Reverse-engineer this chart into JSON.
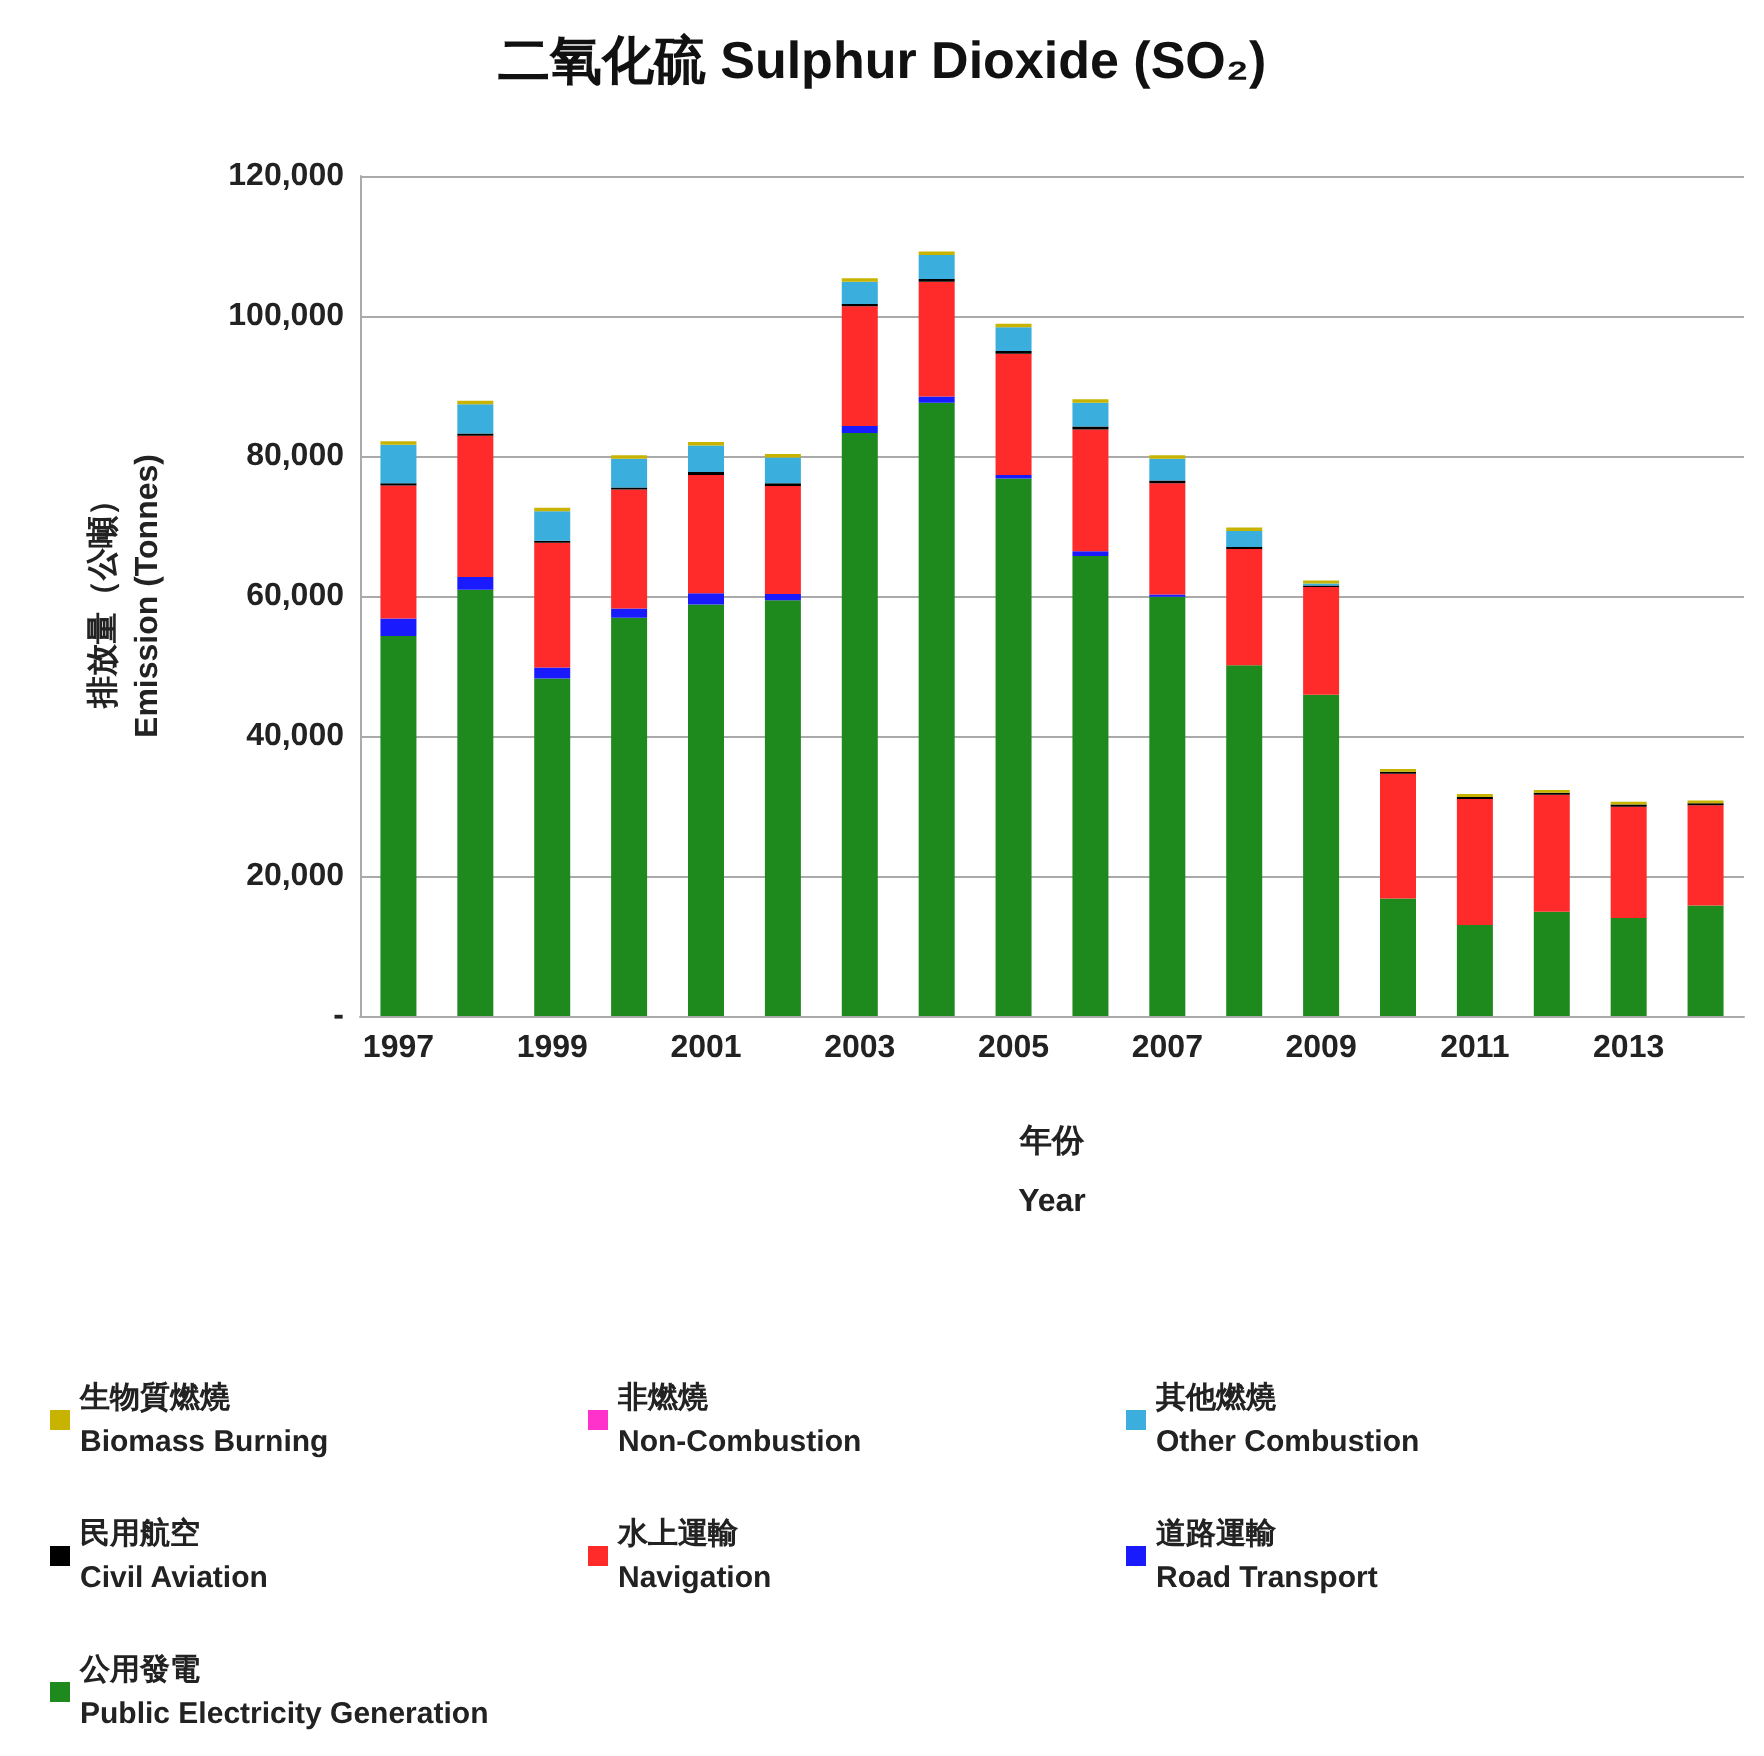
{
  "chart_data": {
    "type": "bar",
    "stacked": true,
    "title": "二氧化硫 Sulphur Dioxide (SO₂)",
    "xlabel": "年份\nYear",
    "ylabel": "排放量（公噸）\nEmission (Tonnes)",
    "categories": [
      "1997",
      null,
      "1999",
      null,
      "2001",
      null,
      "2003",
      null,
      "2005",
      null,
      "2007",
      null,
      "2009",
      null,
      "2011",
      null,
      "2013",
      null
    ],
    "series": [
      {
        "name": "公用發電\nPublic Electricity Generation",
        "color": "#1e8a1e",
        "values": [
          54300,
          60900,
          48200,
          56900,
          58800,
          59400,
          83300,
          87600,
          76800,
          65700,
          59900,
          50100,
          45900,
          16800,
          13000,
          14900,
          14000,
          15800
        ]
      },
      {
        "name": "道路運輸\nRoad Transport",
        "color": "#1a1aff",
        "values": [
          2500,
          1800,
          1600,
          1300,
          1600,
          900,
          1000,
          900,
          500,
          700,
          300,
          0,
          0,
          0,
          0,
          0,
          0,
          0
        ]
      },
      {
        "name": "水上運輸\nNavigation",
        "color": "#ff2a2a",
        "values": [
          19000,
          20200,
          17800,
          17000,
          16900,
          15400,
          17100,
          16400,
          17300,
          17400,
          15900,
          16600,
          15400,
          17800,
          18000,
          16700,
          15900,
          14300
        ]
      },
      {
        "name": "民用航空\nCivil Aviation",
        "color": "#000000",
        "values": [
          300,
          300,
          300,
          300,
          400,
          400,
          300,
          400,
          400,
          400,
          400,
          300,
          200,
          300,
          300,
          300,
          300,
          300
        ]
      },
      {
        "name": "其他燃燒\nOther Combustion",
        "color": "#3aaedc",
        "values": [
          5500,
          4200,
          4200,
          4100,
          3800,
          3700,
          3200,
          3400,
          3400,
          3400,
          3100,
          2300,
          300,
          0,
          0,
          0,
          0,
          0
        ]
      },
      {
        "name": "非燃燒\nNon-Combustion",
        "color": "#ff33cc",
        "values": [
          0,
          0,
          0,
          0,
          0,
          0,
          0,
          0,
          0,
          0,
          0,
          0,
          0,
          0,
          0,
          0,
          0,
          0
        ]
      },
      {
        "name": "生物質燃燒\nBiomass Burning",
        "color": "#c8b400",
        "values": [
          500,
          500,
          500,
          500,
          500,
          500,
          500,
          500,
          500,
          500,
          500,
          500,
          400,
          400,
          400,
          400,
          400,
          400
        ]
      }
    ],
    "ylim": [
      0,
      120000
    ],
    "yticks": [
      {
        "value": 0,
        "label": "-"
      },
      {
        "value": 20000,
        "label": "20,000"
      },
      {
        "value": 40000,
        "label": "40,000"
      },
      {
        "value": 60000,
        "label": "60,000"
      },
      {
        "value": 80000,
        "label": "80,000"
      },
      {
        "value": 100000,
        "label": "100,000"
      },
      {
        "value": 120000,
        "label": "120,000"
      }
    ],
    "grid": "y",
    "legend": "bottom"
  }
}
